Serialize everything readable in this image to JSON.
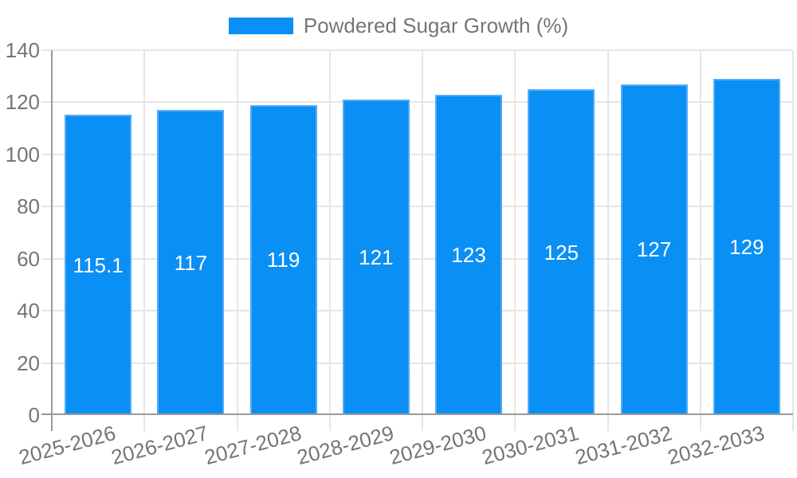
{
  "chart_data": {
    "type": "bar",
    "title": "",
    "xlabel": "",
    "ylabel": "",
    "categories": [
      "2025-2026",
      "2026-2027",
      "2027-2028",
      "2028-2029",
      "2029-2030",
      "2030-2031",
      "2031-2032",
      "2032-2033"
    ],
    "series": [
      {
        "name": "Powdered Sugar Growth (%)",
        "values": [
          115.1,
          117,
          119,
          121,
          123,
          125,
          127,
          129
        ],
        "value_labels": [
          "115.1",
          "117",
          "119",
          "121",
          "123",
          "125",
          "127",
          "129"
        ],
        "color": "#0a90f5"
      }
    ],
    "ylim": [
      0,
      140
    ],
    "yticks": [
      0,
      20,
      40,
      60,
      80,
      100,
      120,
      140
    ],
    "grid": true,
    "legend_position": "top",
    "colors": {
      "bar_fill": "#0a90f5",
      "bar_stroke": "#55abf7",
      "bar_label_text": "#ffffff",
      "axis_text": "#757575",
      "grid_line": "#e6e6e6",
      "axis_line": "#9a9a9a",
      "background": "#ffffff"
    }
  }
}
